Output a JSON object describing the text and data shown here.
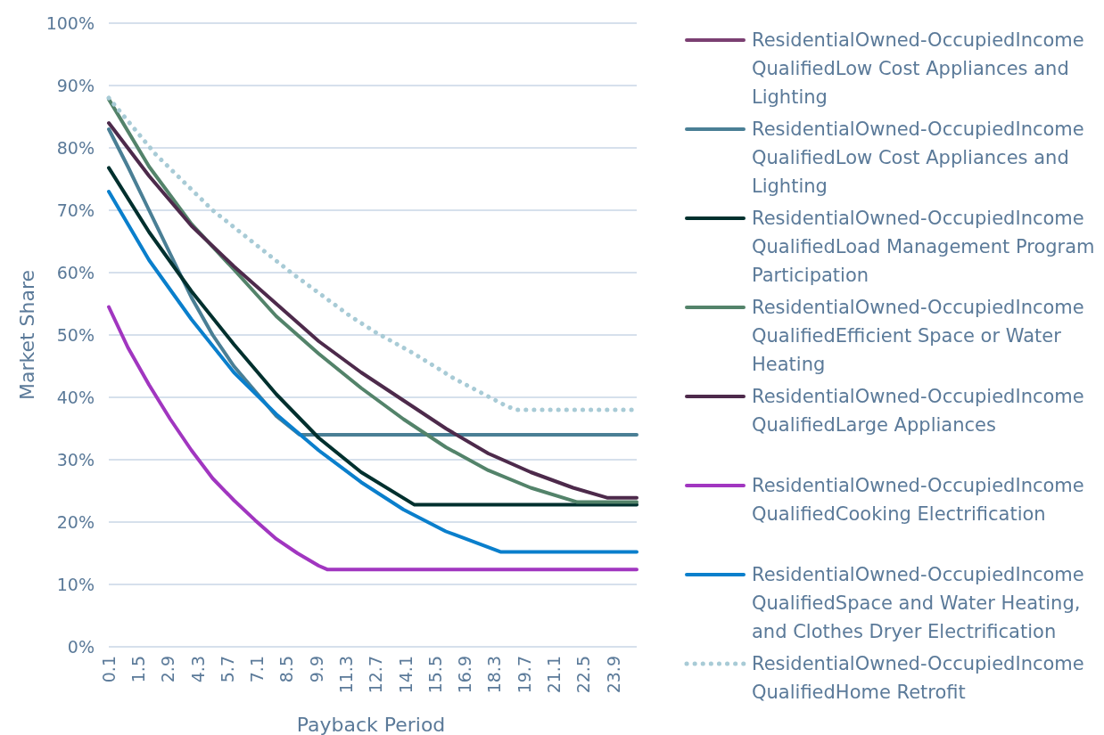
{
  "chart_data": {
    "type": "line",
    "xlabel": "Payback Period",
    "ylabel": "Market Share",
    "xlim": [
      0.1,
      25
    ],
    "xticks": [
      0.1,
      1.5,
      2.9,
      4.3,
      5.7,
      7.1,
      8.5,
      9.9,
      11.3,
      12.7,
      14.1,
      15.5,
      16.9,
      18.3,
      19.7,
      21.1,
      22.5,
      23.9
    ],
    "ylim": [
      0,
      100
    ],
    "yticks": [
      {
        "value": 0,
        "label": "0%"
      },
      {
        "value": 10,
        "label": "10%"
      },
      {
        "value": 20,
        "label": "20%"
      },
      {
        "value": 30,
        "label": "30%"
      },
      {
        "value": 40,
        "label": "40%"
      },
      {
        "value": 50,
        "label": "50%"
      },
      {
        "value": 60,
        "label": "60%"
      },
      {
        "value": 70,
        "label": "70%"
      },
      {
        "value": 80,
        "label": "80%"
      },
      {
        "value": 90,
        "label": "90%"
      },
      {
        "value": 100,
        "label": "100%"
      }
    ],
    "grid": "y",
    "legend": "right",
    "marker": "none",
    "line_style": "solid",
    "series": [
      {
        "name": "ResidentialOwned-OccupiedIncome QualifiedLow Cost Appliances and Lighting",
        "color": "#7b3f72"
      },
      {
        "name": "ResidentialOwned-OccupiedIncome QualifiedLow Cost Appliances and Lighting",
        "color": "#4a7f95",
        "x": [
          0.1,
          1,
          2,
          3,
          4,
          5,
          6,
          7,
          8,
          9.1,
          25
        ],
        "values": [
          83,
          77,
          70,
          63,
          56,
          50,
          45,
          41,
          37,
          34,
          34
        ]
      },
      {
        "name": "ResidentialOwned-OccupiedIncome QualifiedLoad Management Program Participation",
        "color": "#00302e",
        "x": [
          0.1,
          2,
          4,
          6,
          8,
          10,
          12,
          14.5,
          25
        ],
        "values": [
          76.8,
          66.5,
          57,
          48.5,
          40.5,
          33.5,
          28,
          22.8,
          22.8
        ]
      },
      {
        "name": "ResidentialOwned-OccupiedIncome QualifiedEfficient Space or Water Heating",
        "color": "#53836a",
        "x": [
          0.1,
          2,
          4,
          6,
          8,
          10,
          12,
          14,
          16,
          18,
          20,
          22.2,
          25
        ],
        "values": [
          87.8,
          77,
          67.8,
          60.5,
          53,
          47,
          41.5,
          36.5,
          32,
          28.3,
          25.5,
          23.2,
          23.2
        ]
      },
      {
        "name": "ResidentialOwned-OccupiedIncome QualifiedLarge Appliances",
        "color": "#4d2a4b",
        "x": [
          0.1,
          2,
          4,
          6,
          8,
          10,
          12,
          14,
          16,
          18,
          20,
          22,
          23.6,
          25
        ],
        "values": [
          84,
          75.5,
          67.5,
          61,
          55,
          49,
          44,
          39.5,
          35,
          31,
          28,
          25.5,
          23.9,
          23.9
        ]
      },
      {
        "name": "ResidentialOwned-OccupiedIncome QualifiedCooking Electrification",
        "color": "#a136c0",
        "x": [
          0.1,
          1,
          2,
          3,
          4,
          5,
          6,
          7,
          8,
          9,
          10,
          10.4,
          25
        ],
        "values": [
          54.5,
          48,
          42,
          36.5,
          31.5,
          27,
          23.5,
          20.3,
          17.3,
          15,
          13,
          12.4,
          12.4
        ]
      },
      {
        "name": "ResidentialOwned-OccupiedIncome QualifiedSpace and Water Heating, and Clothes Dryer Electrification",
        "color": "#0a7fcc",
        "x": [
          0.1,
          2,
          4,
          6,
          8,
          10,
          12,
          14,
          16,
          18.6,
          25
        ],
        "values": [
          73,
          62,
          52.5,
          44,
          37.3,
          31.5,
          26.4,
          22,
          18.5,
          15.2,
          15.2
        ]
      },
      {
        "name": "ResidentialOwned-OccupiedIncome QualifiedHome Retrofit",
        "color": "#a8cbd6",
        "line_style": "dotted",
        "x": [
          0.1,
          2.3,
          5,
          8.7,
          11.5,
          12.7,
          14.5,
          16.4,
          18.8,
          19.3,
          25
        ],
        "values": [
          88,
          79,
          70,
          60,
          53,
          50.4,
          47,
          43,
          38.7,
          38,
          38
        ]
      }
    ]
  }
}
